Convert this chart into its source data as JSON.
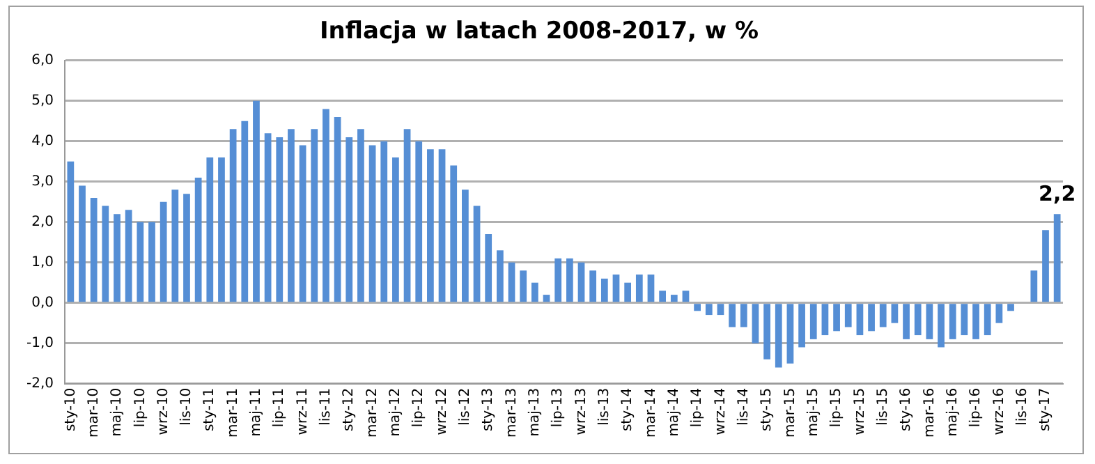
{
  "chart_data": {
    "type": "bar",
    "title": "Inflacja w latach 2008-2017, w %",
    "categories": [
      "sty-10",
      null,
      "mar-10",
      null,
      "maj-10",
      null,
      "lip-10",
      null,
      "wrz-10",
      null,
      "lis-10",
      null,
      "sty-11",
      null,
      "mar-11",
      null,
      "maj-11",
      null,
      "lip-11",
      null,
      "wrz-11",
      null,
      "lis-11",
      null,
      "sty-12",
      null,
      "mar-12",
      null,
      "maj-12",
      null,
      "lip-12",
      null,
      "wrz-12",
      null,
      "lis-12",
      null,
      "sty-13",
      null,
      "mar-13",
      null,
      "maj-13",
      null,
      "lip-13",
      null,
      "wrz-13",
      null,
      "lis-13",
      null,
      "sty-14",
      null,
      "mar-14",
      null,
      "maj-14",
      null,
      "lip-14",
      null,
      "wrz-14",
      null,
      "lis-14",
      null,
      "sty-15",
      null,
      "mar-15",
      null,
      "maj-15",
      null,
      "lip-15",
      null,
      "wrz-15",
      null,
      "lis-15",
      null,
      "sty-16",
      null,
      "mar-16",
      null,
      "maj-16",
      null,
      "lip-16",
      null,
      "wrz-16",
      null,
      "lis-16",
      null,
      "sty-17",
      null
    ],
    "values": [
      3.5,
      2.9,
      2.6,
      2.4,
      2.2,
      2.3,
      2.0,
      2.0,
      2.5,
      2.8,
      2.7,
      3.1,
      3.6,
      3.6,
      4.3,
      4.5,
      5.0,
      4.2,
      4.1,
      4.3,
      3.9,
      4.3,
      4.8,
      4.6,
      4.1,
      4.3,
      3.9,
      4.0,
      3.6,
      4.3,
      4.0,
      3.8,
      3.8,
      3.4,
      2.8,
      2.4,
      1.7,
      1.3,
      1.0,
      0.8,
      0.5,
      0.2,
      1.1,
      1.1,
      1.0,
      0.8,
      0.6,
      0.7,
      0.5,
      0.7,
      0.7,
      0.3,
      0.2,
      0.3,
      -0.2,
      -0.3,
      -0.3,
      -0.6,
      -0.6,
      -1.0,
      -1.4,
      -1.6,
      -1.5,
      -1.1,
      -0.9,
      -0.8,
      -0.7,
      -0.6,
      -0.8,
      -0.7,
      -0.6,
      -0.5,
      -0.9,
      -0.8,
      -0.9,
      -1.1,
      -0.9,
      -0.8,
      -0.9,
      -0.8,
      -0.5,
      -0.2,
      0.0,
      0.8,
      1.8,
      2.2
    ],
    "value_labels": [
      null,
      null,
      null,
      null,
      null,
      null,
      null,
      null,
      null,
      null,
      null,
      null,
      null,
      null,
      null,
      null,
      null,
      null,
      null,
      null,
      null,
      null,
      null,
      null,
      null,
      null,
      null,
      null,
      null,
      null,
      null,
      null,
      null,
      null,
      null,
      null,
      null,
      null,
      null,
      null,
      null,
      null,
      null,
      null,
      null,
      null,
      null,
      null,
      null,
      null,
      null,
      null,
      null,
      null,
      null,
      null,
      null,
      null,
      null,
      null,
      null,
      null,
      null,
      null,
      null,
      null,
      null,
      null,
      null,
      null,
      null,
      null,
      null,
      null,
      null,
      null,
      null,
      null,
      null,
      null,
      null,
      null,
      null,
      null,
      null,
      "2,2"
    ],
    "color": "#558ed5",
    "ylim": [
      -2,
      6
    ],
    "yticks": [
      {
        "value": -2,
        "label": "-2,0"
      },
      {
        "value": -1,
        "label": "-1,0"
      },
      {
        "value": 0,
        "label": "0,0"
      },
      {
        "value": 1,
        "label": "1,0"
      },
      {
        "value": 2,
        "label": "2,0"
      },
      {
        "value": 3,
        "label": "3,0"
      },
      {
        "value": 4,
        "label": "4,0"
      },
      {
        "value": 5,
        "label": "5,0"
      },
      {
        "value": 6,
        "label": "6,0"
      }
    ],
    "grid": "y",
    "legend": false
  }
}
